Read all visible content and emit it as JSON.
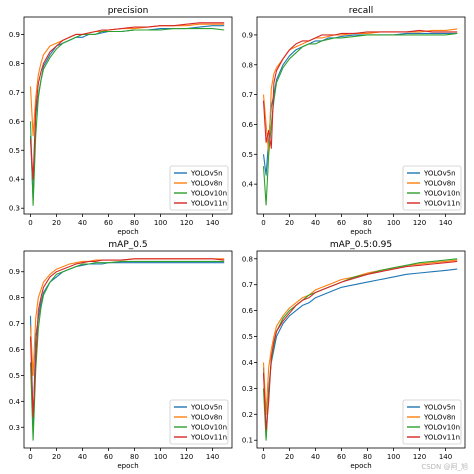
{
  "figure": {
    "watermark": "CSDN @阿_旭"
  },
  "chart_data": [
    {
      "type": "line",
      "title": "precision",
      "xlabel": "epoch",
      "ylabel": "",
      "xlim": [
        -5,
        155
      ],
      "ylim": [
        0.28,
        0.96
      ],
      "xticks": [
        0,
        20,
        40,
        60,
        80,
        100,
        120,
        140
      ],
      "yticks": [
        0.3,
        0.4,
        0.5,
        0.6,
        0.7,
        0.8,
        0.9
      ],
      "ytick_labels": [
        "0.3",
        "0.4",
        "0.5",
        "0.6",
        "0.7",
        "0.8",
        "0.9"
      ],
      "legend": "lower-right",
      "x": [
        0,
        2,
        4,
        6,
        8,
        10,
        15,
        20,
        25,
        30,
        35,
        40,
        45,
        50,
        55,
        60,
        70,
        80,
        90,
        100,
        110,
        120,
        130,
        140,
        149
      ],
      "series": [
        {
          "name": "YOLOv5n",
          "color": "#1f77b4",
          "values": [
            0.55,
            0.33,
            0.62,
            0.69,
            0.74,
            0.79,
            0.83,
            0.86,
            0.87,
            0.88,
            0.89,
            0.89,
            0.9,
            0.9,
            0.905,
            0.91,
            0.91,
            0.915,
            0.915,
            0.92,
            0.92,
            0.92,
            0.925,
            0.93,
            0.93
          ]
        },
        {
          "name": "YOLOv8n",
          "color": "#ff7f0e",
          "values": [
            0.72,
            0.55,
            0.68,
            0.76,
            0.8,
            0.83,
            0.86,
            0.87,
            0.88,
            0.89,
            0.9,
            0.9,
            0.905,
            0.91,
            0.91,
            0.915,
            0.92,
            0.92,
            0.925,
            0.93,
            0.93,
            0.93,
            0.935,
            0.935,
            0.935
          ]
        },
        {
          "name": "YOLOv10n",
          "color": "#2ca02c",
          "values": [
            0.6,
            0.31,
            0.55,
            0.68,
            0.74,
            0.78,
            0.82,
            0.85,
            0.87,
            0.88,
            0.89,
            0.9,
            0.9,
            0.9,
            0.91,
            0.91,
            0.91,
            0.915,
            0.915,
            0.915,
            0.92,
            0.92,
            0.92,
            0.92,
            0.915
          ]
        },
        {
          "name": "YOLOv11n",
          "color": "#d62728",
          "values": [
            0.54,
            0.4,
            0.64,
            0.73,
            0.77,
            0.8,
            0.84,
            0.86,
            0.88,
            0.89,
            0.9,
            0.9,
            0.905,
            0.91,
            0.915,
            0.915,
            0.92,
            0.925,
            0.925,
            0.93,
            0.93,
            0.935,
            0.94,
            0.94,
            0.94
          ]
        }
      ]
    },
    {
      "type": "line",
      "title": "recall",
      "xlabel": "epoch",
      "ylabel": "",
      "xlim": [
        -5,
        155
      ],
      "ylim": [
        0.3,
        0.96
      ],
      "xticks": [
        0,
        20,
        40,
        60,
        80,
        100,
        120,
        140
      ],
      "yticks": [
        0.4,
        0.5,
        0.6,
        0.7,
        0.8,
        0.9
      ],
      "ytick_labels": [
        "0.4",
        "0.5",
        "0.6",
        "0.7",
        "0.8",
        "0.9"
      ],
      "legend": "lower-right",
      "x": [
        0,
        2,
        4,
        6,
        8,
        10,
        15,
        20,
        25,
        30,
        35,
        40,
        45,
        50,
        55,
        60,
        70,
        80,
        90,
        100,
        110,
        120,
        130,
        140,
        149
      ],
      "series": [
        {
          "name": "YOLOv5n",
          "color": "#1f77b4",
          "values": [
            0.5,
            0.43,
            0.55,
            0.66,
            0.7,
            0.75,
            0.8,
            0.83,
            0.85,
            0.86,
            0.87,
            0.88,
            0.88,
            0.89,
            0.89,
            0.895,
            0.9,
            0.9,
            0.9,
            0.9,
            0.905,
            0.905,
            0.905,
            0.905,
            0.905
          ]
        },
        {
          "name": "YOLOv8n",
          "color": "#ff7f0e",
          "values": [
            0.7,
            0.6,
            0.5,
            0.72,
            0.77,
            0.79,
            0.82,
            0.85,
            0.86,
            0.87,
            0.88,
            0.89,
            0.89,
            0.895,
            0.9,
            0.9,
            0.905,
            0.905,
            0.91,
            0.91,
            0.91,
            0.91,
            0.915,
            0.915,
            0.92
          ]
        },
        {
          "name": "YOLOv10n",
          "color": "#2ca02c",
          "values": [
            0.46,
            0.33,
            0.5,
            0.6,
            0.68,
            0.74,
            0.79,
            0.82,
            0.84,
            0.86,
            0.87,
            0.87,
            0.88,
            0.885,
            0.89,
            0.89,
            0.895,
            0.9,
            0.9,
            0.9,
            0.9,
            0.9,
            0.9,
            0.9,
            0.905
          ]
        },
        {
          "name": "YOLOv11n",
          "color": "#d62728",
          "values": [
            0.68,
            0.54,
            0.58,
            0.52,
            0.74,
            0.78,
            0.82,
            0.85,
            0.87,
            0.88,
            0.88,
            0.89,
            0.9,
            0.9,
            0.9,
            0.905,
            0.905,
            0.91,
            0.91,
            0.91,
            0.91,
            0.915,
            0.91,
            0.91,
            0.91
          ]
        }
      ]
    },
    {
      "type": "line",
      "title": "mAP_0.5",
      "xlabel": "epoch",
      "ylabel": "",
      "xlim": [
        -5,
        155
      ],
      "ylim": [
        0.22,
        0.98
      ],
      "xticks": [
        0,
        20,
        40,
        60,
        80,
        100,
        120,
        140
      ],
      "yticks": [
        0.3,
        0.4,
        0.5,
        0.6,
        0.7,
        0.8,
        0.9
      ],
      "ytick_labels": [
        "0.3",
        "0.4",
        "0.5",
        "0.6",
        "0.7",
        "0.8",
        "0.9"
      ],
      "legend": "lower-right",
      "x": [
        0,
        2,
        4,
        6,
        8,
        10,
        15,
        20,
        25,
        30,
        35,
        40,
        45,
        50,
        55,
        60,
        70,
        80,
        90,
        100,
        110,
        120,
        130,
        140,
        149
      ],
      "series": [
        {
          "name": "YOLOv5n",
          "color": "#1f77b4",
          "values": [
            0.73,
            0.3,
            0.65,
            0.72,
            0.78,
            0.82,
            0.86,
            0.88,
            0.9,
            0.91,
            0.92,
            0.925,
            0.93,
            0.93,
            0.93,
            0.935,
            0.935,
            0.935,
            0.935,
            0.935,
            0.935,
            0.935,
            0.935,
            0.935,
            0.935
          ]
        },
        {
          "name": "YOLOv8n",
          "color": "#ff7f0e",
          "values": [
            0.69,
            0.5,
            0.72,
            0.8,
            0.83,
            0.86,
            0.89,
            0.91,
            0.92,
            0.93,
            0.935,
            0.94,
            0.94,
            0.945,
            0.945,
            0.945,
            0.945,
            0.95,
            0.95,
            0.95,
            0.95,
            0.95,
            0.95,
            0.95,
            0.95
          ]
        },
        {
          "name": "YOLOv10n",
          "color": "#2ca02c",
          "values": [
            0.55,
            0.25,
            0.52,
            0.68,
            0.76,
            0.81,
            0.86,
            0.89,
            0.9,
            0.91,
            0.92,
            0.93,
            0.93,
            0.935,
            0.935,
            0.935,
            0.94,
            0.94,
            0.94,
            0.94,
            0.94,
            0.94,
            0.94,
            0.94,
            0.94
          ]
        },
        {
          "name": "YOLOv11n",
          "color": "#d62728",
          "values": [
            0.65,
            0.34,
            0.56,
            0.75,
            0.8,
            0.84,
            0.88,
            0.9,
            0.91,
            0.92,
            0.93,
            0.935,
            0.94,
            0.94,
            0.945,
            0.945,
            0.945,
            0.95,
            0.95,
            0.95,
            0.95,
            0.95,
            0.95,
            0.95,
            0.945
          ]
        }
      ]
    },
    {
      "type": "line",
      "title": "mAP_0.5:0.95",
      "xlabel": "epoch",
      "ylabel": "",
      "xlim": [
        -5,
        155
      ],
      "ylim": [
        0.07,
        0.83
      ],
      "xticks": [
        0,
        20,
        40,
        60,
        80,
        100,
        120,
        140
      ],
      "yticks": [
        0.1,
        0.2,
        0.3,
        0.4,
        0.5,
        0.6,
        0.7,
        0.8
      ],
      "ytick_labels": [
        "0.1",
        "0.2",
        "0.3",
        "0.4",
        "0.5",
        "0.6",
        "0.7",
        "0.8"
      ],
      "legend": "lower-right",
      "x": [
        0,
        2,
        4,
        6,
        8,
        10,
        15,
        20,
        25,
        30,
        35,
        40,
        45,
        50,
        55,
        60,
        70,
        80,
        90,
        100,
        110,
        120,
        130,
        140,
        149
      ],
      "series": [
        {
          "name": "YOLOv5n",
          "color": "#1f77b4",
          "values": [
            0.38,
            0.11,
            0.3,
            0.4,
            0.45,
            0.5,
            0.55,
            0.58,
            0.6,
            0.62,
            0.63,
            0.65,
            0.66,
            0.67,
            0.68,
            0.69,
            0.7,
            0.71,
            0.72,
            0.73,
            0.74,
            0.745,
            0.75,
            0.755,
            0.76
          ]
        },
        {
          "name": "YOLOv8n",
          "color": "#ff7f0e",
          "values": [
            0.4,
            0.2,
            0.38,
            0.45,
            0.5,
            0.54,
            0.58,
            0.61,
            0.63,
            0.65,
            0.66,
            0.68,
            0.69,
            0.7,
            0.71,
            0.72,
            0.73,
            0.745,
            0.755,
            0.765,
            0.775,
            0.78,
            0.785,
            0.79,
            0.795
          ]
        },
        {
          "name": "YOLOv10n",
          "color": "#2ca02c",
          "values": [
            0.3,
            0.1,
            0.28,
            0.41,
            0.47,
            0.52,
            0.57,
            0.6,
            0.62,
            0.64,
            0.66,
            0.67,
            0.68,
            0.69,
            0.7,
            0.71,
            0.73,
            0.74,
            0.755,
            0.765,
            0.775,
            0.785,
            0.79,
            0.795,
            0.8
          ]
        },
        {
          "name": "YOLOv11n",
          "color": "#d62728",
          "values": [
            0.36,
            0.14,
            0.25,
            0.42,
            0.48,
            0.52,
            0.56,
            0.59,
            0.62,
            0.64,
            0.65,
            0.67,
            0.68,
            0.69,
            0.7,
            0.71,
            0.725,
            0.74,
            0.75,
            0.76,
            0.77,
            0.775,
            0.78,
            0.785,
            0.79
          ]
        }
      ]
    }
  ]
}
